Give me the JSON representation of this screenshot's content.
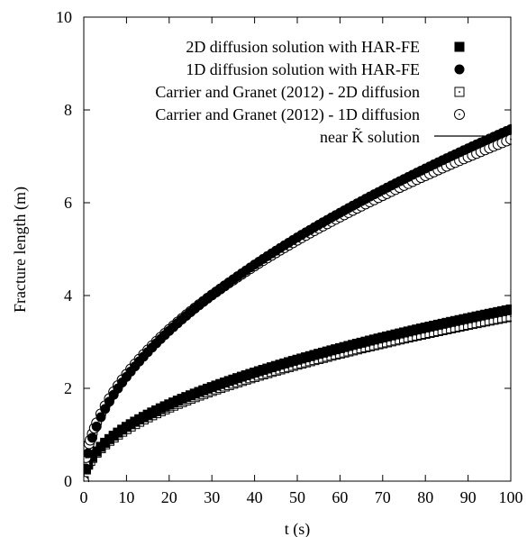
{
  "chart_data": {
    "type": "scatter",
    "xlabel": "t (s)",
    "ylabel": "Fracture length (m)",
    "xlim": [
      0,
      100
    ],
    "ylim": [
      0,
      10
    ],
    "x_ticks": [
      0,
      10,
      20,
      30,
      40,
      50,
      60,
      70,
      80,
      90,
      100
    ],
    "y_ticks": [
      0,
      2,
      4,
      6,
      8,
      10
    ],
    "legend_position": "top-right",
    "grid": false,
    "series": [
      {
        "name": "2D diffusion solution with HAR-FE",
        "marker": "filled-square",
        "color": "#000000",
        "model": {
          "a": 0.37,
          "p": 0.5,
          "x0": 0,
          "y0": 0
        },
        "x": [
          0,
          0.5,
          1,
          2,
          3,
          4,
          5,
          6,
          7,
          8,
          9,
          10,
          11,
          12,
          13,
          14,
          15,
          16,
          17,
          18,
          19,
          20,
          21,
          22,
          23,
          24,
          25,
          26,
          27,
          28,
          29,
          30,
          31,
          32,
          33,
          34,
          35,
          36,
          37,
          38,
          39,
          40,
          41,
          42,
          43,
          44,
          45,
          46,
          47,
          48,
          49,
          50,
          51,
          52,
          53,
          54,
          55,
          56,
          57,
          58,
          59,
          60,
          61,
          62,
          63,
          64,
          65,
          66,
          67,
          68,
          69,
          70,
          71,
          72,
          73,
          74,
          75,
          76,
          77,
          78,
          79,
          80,
          81,
          82,
          83,
          84,
          85,
          86,
          87,
          88,
          89,
          90,
          91,
          92,
          93,
          94,
          95,
          96,
          97,
          98,
          99,
          100
        ]
      },
      {
        "name": "1D diffusion solution with HAR-FE",
        "marker": "filled-circle",
        "color": "#000000",
        "model": {
          "a": 0.62,
          "p": 0.54,
          "x0": 0.45,
          "y0": 0.15
        },
        "x": [
          0.5,
          1,
          2,
          3,
          4,
          5,
          6,
          7,
          8,
          9,
          10,
          11,
          12,
          13,
          14,
          15,
          16,
          17,
          18,
          19,
          20,
          21,
          22,
          23,
          24,
          25,
          26,
          27,
          28,
          29,
          30,
          31,
          32,
          33,
          34,
          35,
          36,
          37,
          38,
          39,
          40,
          41,
          42,
          43,
          44,
          45,
          46,
          47,
          48,
          49,
          50,
          51,
          52,
          53,
          54,
          55,
          56,
          57,
          58,
          59,
          60,
          61,
          62,
          63,
          64,
          65,
          66,
          67,
          68,
          69,
          70,
          71,
          72,
          73,
          74,
          75,
          76,
          77,
          78,
          79,
          80,
          81,
          82,
          83,
          84,
          85,
          86,
          87,
          88,
          89,
          90,
          91,
          92,
          93,
          94,
          95,
          96,
          97,
          98,
          99,
          100
        ]
      },
      {
        "name": "Carrier and Granet (2012) - 2D diffusion",
        "marker": "open-square-dot",
        "color": "#000000",
        "model": {
          "a": 0.355,
          "p": 0.5,
          "x0": 0,
          "y0": 0
        },
        "x": [
          0,
          0.5,
          1,
          1.5,
          2,
          3,
          4,
          5,
          6,
          7,
          8,
          9,
          10,
          11,
          12,
          13,
          14,
          15,
          16,
          17,
          18,
          19,
          20,
          21,
          22,
          23,
          24,
          25,
          26,
          27,
          28,
          29,
          30,
          31,
          32,
          33,
          34,
          35,
          36,
          37,
          38,
          39,
          40,
          41,
          42,
          43,
          44,
          45,
          46,
          47,
          48,
          49,
          50,
          51,
          52,
          53,
          54,
          55,
          56,
          57,
          58,
          59,
          60,
          61,
          62,
          63,
          64,
          65,
          66,
          67,
          68,
          69,
          70,
          71,
          72,
          73,
          74,
          75,
          76,
          77,
          78,
          79,
          80,
          81,
          82,
          83,
          84,
          85,
          86,
          87,
          88,
          89,
          90,
          91,
          92,
          93,
          94,
          95,
          96,
          97,
          98,
          99,
          100
        ]
      },
      {
        "name": "Carrier and Granet (2012) - 1D diffusion",
        "marker": "open-circle-dot",
        "color": "#000000",
        "model": {
          "a": 0.72,
          "p": 0.505,
          "x0": 0,
          "y0": 0
        },
        "x": [
          0,
          0.25,
          0.5,
          0.75,
          1,
          1.25,
          1.5,
          2,
          2.5,
          3,
          4,
          5,
          6,
          7,
          8,
          9,
          10,
          11,
          12,
          13,
          14,
          15,
          16,
          17,
          18,
          19,
          20,
          21,
          22,
          23,
          24,
          25,
          26,
          27,
          28,
          29,
          30,
          31,
          32,
          33,
          34,
          35,
          36,
          37,
          38,
          39,
          40,
          41,
          42,
          43,
          44,
          45,
          46,
          47,
          48,
          49,
          50,
          51,
          52,
          53,
          54,
          55,
          56,
          57,
          58,
          59,
          60,
          61,
          62,
          63,
          64,
          65,
          66,
          67,
          68,
          69,
          70,
          71,
          72,
          73,
          74,
          75,
          76,
          77,
          78,
          79,
          80,
          81,
          82,
          83,
          84,
          85,
          86,
          87,
          88,
          89,
          90,
          91,
          92,
          93,
          94,
          95,
          96,
          97,
          98,
          99,
          100
        ]
      },
      {
        "name": "near K̃ solution",
        "marker": "line",
        "color": "#000000",
        "model": {
          "a": 0.74,
          "p": 0.5,
          "x0": 0,
          "y0": 0
        },
        "x": [
          0,
          0.05,
          0.1,
          0.2,
          0.35,
          0.5,
          0.75,
          1,
          1.5,
          2,
          3,
          4,
          5,
          6,
          7,
          8,
          10,
          12,
          14,
          16,
          18,
          20,
          23,
          26,
          30,
          34,
          38,
          42,
          46,
          50,
          55,
          60,
          65,
          70,
          75,
          80,
          85,
          90,
          95,
          100
        ]
      }
    ]
  }
}
